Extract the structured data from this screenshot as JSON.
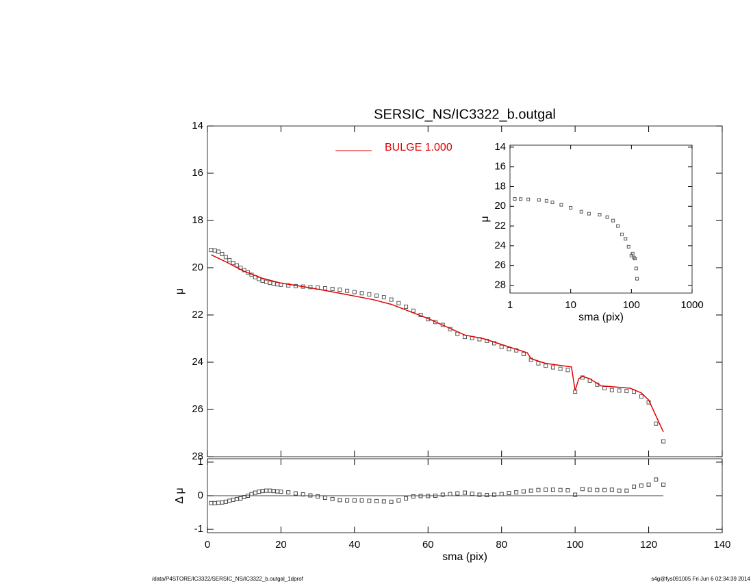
{
  "chart_data": [
    {
      "type": "line",
      "title": "SERSIC_NS/IC3322_b.outgal",
      "ylabel": "μ",
      "ylim": [
        14,
        28
      ],
      "yticks": [
        14,
        16,
        18,
        20,
        22,
        24,
        26,
        28
      ],
      "y_inverted": true,
      "series": [
        {
          "style": "markers",
          "color": "#555555",
          "x": [
            1,
            2,
            3,
            4,
            5,
            6,
            7,
            8,
            9,
            10,
            11,
            12,
            13,
            14,
            15,
            16,
            17,
            18,
            19,
            20,
            22,
            24,
            26,
            28,
            30,
            32,
            34,
            36,
            38,
            40,
            42,
            44,
            46,
            48,
            50,
            52,
            54,
            56,
            58,
            60,
            62,
            64,
            66,
            68,
            70,
            72,
            74,
            76,
            78,
            80,
            82,
            84,
            86,
            88,
            90,
            92,
            94,
            96,
            98,
            100,
            102,
            104,
            106,
            108,
            110,
            112,
            114,
            116,
            118,
            120,
            122,
            124
          ],
          "values": [
            19.25,
            19.27,
            19.32,
            19.42,
            19.55,
            19.68,
            19.8,
            19.9,
            20.0,
            20.1,
            20.2,
            20.3,
            20.4,
            20.48,
            20.55,
            20.6,
            20.64,
            20.67,
            20.7,
            20.72,
            20.75,
            20.78,
            20.8,
            20.82,
            20.84,
            20.87,
            20.9,
            20.93,
            20.98,
            21.03,
            21.08,
            21.13,
            21.18,
            21.25,
            21.35,
            21.5,
            21.65,
            21.82,
            22.0,
            22.18,
            22.3,
            22.42,
            22.6,
            22.8,
            22.93,
            22.98,
            23.03,
            23.1,
            23.2,
            23.35,
            23.45,
            23.5,
            23.65,
            23.9,
            24.05,
            24.15,
            24.22,
            24.28,
            24.33,
            25.25,
            24.65,
            24.78,
            24.95,
            25.1,
            25.18,
            25.2,
            25.22,
            25.25,
            25.45,
            25.7,
            26.6,
            27.35
          ]
        },
        {
          "style": "line",
          "name": "BULGE  1.000",
          "color": "#e00000",
          "x": [
            1,
            5,
            10,
            15,
            20,
            28,
            35,
            45,
            50,
            55,
            60,
            65,
            70,
            75,
            80,
            85,
            87,
            88,
            92,
            99,
            100,
            101,
            102,
            104,
            107,
            115,
            118,
            120,
            124
          ],
          "values": [
            19.45,
            19.75,
            20.15,
            20.45,
            20.65,
            20.85,
            21.05,
            21.35,
            21.55,
            21.85,
            22.15,
            22.5,
            22.85,
            23.0,
            23.25,
            23.5,
            23.6,
            23.85,
            24.05,
            24.2,
            25.2,
            24.7,
            24.6,
            24.7,
            25.0,
            25.1,
            25.3,
            25.6,
            26.95
          ]
        }
      ]
    },
    {
      "type": "scatter",
      "ylabel": "Δ μ",
      "xlabel": "sma (pix)",
      "xlim": [
        0,
        140
      ],
      "xticks": [
        0,
        20,
        40,
        60,
        80,
        100,
        120,
        140
      ],
      "ylim": [
        -1.1,
        1.1
      ],
      "yticks": [
        -1,
        0,
        1
      ],
      "hline": 0,
      "series": [
        {
          "style": "markers",
          "color": "#444444",
          "x": [
            1,
            2,
            3,
            4,
            5,
            6,
            7,
            8,
            9,
            10,
            11,
            12,
            13,
            14,
            15,
            16,
            17,
            18,
            19,
            20,
            22,
            24,
            26,
            28,
            30,
            32,
            34,
            36,
            38,
            40,
            42,
            44,
            46,
            48,
            50,
            52,
            54,
            56,
            58,
            60,
            62,
            64,
            66,
            68,
            70,
            72,
            74,
            76,
            78,
            80,
            82,
            84,
            86,
            88,
            90,
            92,
            94,
            96,
            98,
            100,
            102,
            104,
            106,
            108,
            110,
            112,
            114,
            116,
            118,
            120,
            122,
            124
          ],
          "values": [
            -0.22,
            -0.22,
            -0.21,
            -0.2,
            -0.18,
            -0.15,
            -0.12,
            -0.1,
            -0.08,
            -0.04,
            0.0,
            0.05,
            0.09,
            0.12,
            0.14,
            0.15,
            0.15,
            0.14,
            0.13,
            0.12,
            0.1,
            0.07,
            0.04,
            0.01,
            -0.02,
            -0.06,
            -0.1,
            -0.13,
            -0.14,
            -0.14,
            -0.14,
            -0.15,
            -0.16,
            -0.17,
            -0.18,
            -0.14,
            -0.08,
            -0.02,
            -0.01,
            -0.01,
            0.0,
            0.03,
            0.05,
            0.07,
            0.09,
            0.06,
            0.03,
            0.02,
            0.03,
            0.05,
            0.08,
            0.1,
            0.13,
            0.15,
            0.17,
            0.18,
            0.18,
            0.17,
            0.16,
            0.03,
            0.2,
            0.18,
            0.17,
            0.17,
            0.18,
            0.15,
            0.15,
            0.27,
            0.3,
            0.33,
            0.48,
            0.33
          ]
        }
      ]
    },
    {
      "type": "scatter",
      "ylabel": "μ",
      "xlabel": "sma (pix)",
      "xscale": "log",
      "xlim": [
        1,
        1000
      ],
      "xticks": [
        1,
        10,
        100,
        1000
      ],
      "ylim": [
        13.8,
        28.8
      ],
      "yticks": [
        14,
        16,
        18,
        20,
        22,
        24,
        26,
        28
      ],
      "y_inverted": true,
      "series": [
        {
          "style": "markers",
          "color": "#555555",
          "x": [
            1.2,
            1.5,
            2,
            3,
            4,
            5,
            7,
            10,
            15,
            20,
            30,
            40,
            50,
            60,
            70,
            80,
            90,
            100,
            105,
            110,
            115,
            120,
            124
          ],
          "values": [
            19.25,
            19.27,
            19.3,
            19.35,
            19.45,
            19.6,
            19.85,
            20.15,
            20.55,
            20.75,
            20.85,
            21.1,
            21.45,
            22.0,
            22.85,
            23.3,
            24.1,
            25.0,
            24.8,
            25.2,
            25.3,
            26.3,
            27.35
          ]
        }
      ]
    }
  ],
  "footer": {
    "left": "/data/P4STORE/IC3322/SERSIC_NS/IC3322_b.outgal_1dprof",
    "right": "s4g@fys091005  Fri Jun  6 02:34:39 2014"
  }
}
